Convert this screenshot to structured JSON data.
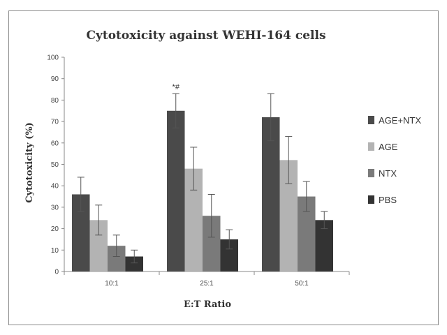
{
  "chart_data": {
    "type": "bar",
    "title": "Cytotoxicity against WEHI-164 cells",
    "xlabel": "E:T Ratio",
    "ylabel": "Cytotoxicity (%)",
    "ylim": [
      0,
      100
    ],
    "yticks": [
      0,
      10,
      20,
      30,
      40,
      50,
      60,
      70,
      80,
      90,
      100
    ],
    "categories": [
      "10:1",
      "25:1",
      "50:1"
    ],
    "series": [
      {
        "name": "AGE+NTX",
        "color": "#4a4a4a",
        "values": [
          36,
          75,
          72
        ],
        "errors": [
          8,
          8,
          11
        ]
      },
      {
        "name": "AGE",
        "color": "#b3b3b3",
        "values": [
          24,
          48,
          52
        ],
        "errors": [
          7,
          10,
          11
        ]
      },
      {
        "name": "NTX",
        "color": "#7a7a7a",
        "values": [
          12,
          26,
          35
        ],
        "errors": [
          5,
          10,
          7
        ]
      },
      {
        "name": "PBS",
        "color": "#333333",
        "values": [
          7,
          15,
          24
        ],
        "errors": [
          3,
          4.5,
          4
        ]
      }
    ],
    "annotations": [
      {
        "text": "*#",
        "category": "25:1",
        "series": "AGE+NTX"
      }
    ],
    "legend": "right",
    "grid": false
  }
}
